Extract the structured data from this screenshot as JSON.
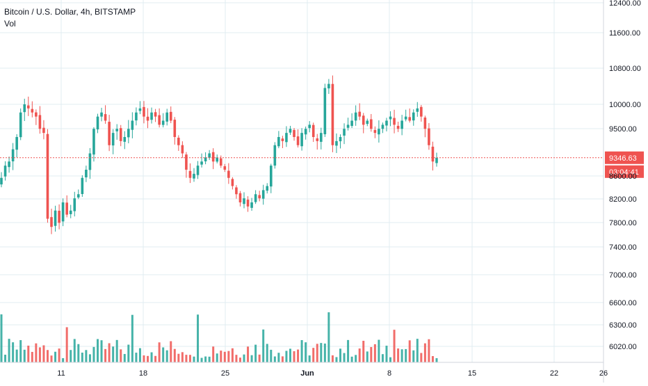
{
  "chart_data": {
    "type": "candlestick",
    "title": "Bitcoin / U.S. Dollar, 4h, BITSTAMP",
    "volume_label": "Vol",
    "price_axis_ticks": [
      12400,
      11600,
      10800,
      10000,
      9500,
      8600,
      8200,
      7800,
      7400,
      7000,
      6600,
      6300,
      6020
    ],
    "price_axis_tick_labels": [
      "12400.00",
      "11600.00",
      "10800.00",
      "10000.00",
      "9500.00",
      "8600.00",
      "8200.00",
      "7800.00",
      "7400.00",
      "7000.00",
      "6600.00",
      "6300.00",
      "6020.00"
    ],
    "x_axis_labels": [
      "11",
      "18",
      "25",
      "Jun",
      "8",
      "15",
      "22",
      "26"
    ],
    "last_price": "9346.63",
    "countdown": "03:04:41",
    "colors": {
      "up": "#26a69a",
      "down": "#ef5350",
      "grid": "#e1ecf2",
      "axis_text": "#131722",
      "price_line": "#ef5350"
    },
    "closes": [
      9100,
      9250,
      9300,
      9450,
      9600,
      9900,
      10000,
      9950,
      9900,
      9850,
      9700,
      9650,
      8600,
      8500,
      8700,
      8550,
      8800,
      8650,
      8700,
      8850,
      8900,
      9100,
      9200,
      9400,
      9700,
      9850,
      9900,
      9800,
      9500,
      9650,
      9700,
      9550,
      9600,
      9700,
      9800,
      9900,
      9950,
      9850,
      9800,
      9900,
      9850,
      9750,
      9800,
      9900,
      9800,
      9600,
      9500,
      9400,
      9200,
      9100,
      9150,
      9250,
      9300,
      9350,
      9400,
      9300,
      9350,
      9250,
      9200,
      9100,
      9000,
      8900,
      8800,
      8850,
      8750,
      8800,
      8900,
      8850,
      8950,
      9000,
      9250,
      9500,
      9600,
      9550,
      9650,
      9700,
      9600,
      9500,
      9650,
      9700,
      9750,
      9600,
      9550,
      9650,
      10200,
      10250,
      9500,
      9550,
      9600,
      9700,
      9750,
      9800,
      9900,
      9850,
      9750,
      9800,
      9700,
      9650,
      9700,
      9750,
      9800,
      9850,
      9750,
      9700,
      9800,
      9850,
      9800,
      9900,
      9950,
      9850,
      9700,
      9500,
      9300,
      9346
    ]
  }
}
